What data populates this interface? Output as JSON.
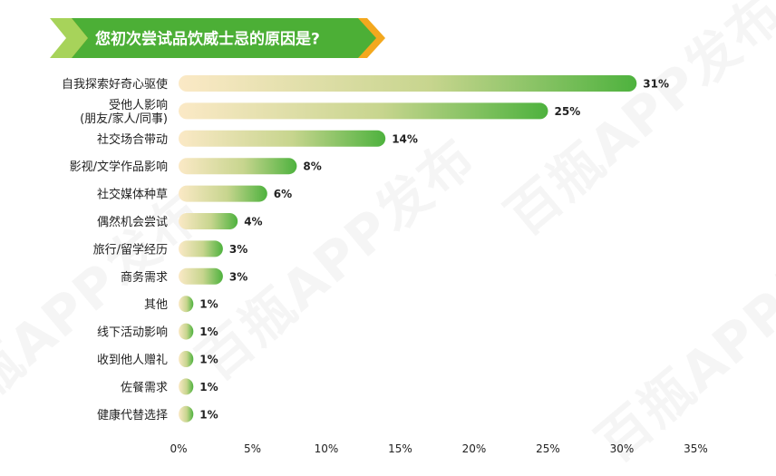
{
  "title": "您初次尝试品饮威士忌的原因是?",
  "watermark": "百瓶APP发布",
  "colors": {
    "banner_green": "#4CAF36",
    "banner_orange": "#F3A81E",
    "bar_start": "#FBE9C6",
    "bar_end": "#4EB23E",
    "text": "#222222"
  },
  "chart_data": {
    "type": "bar",
    "orientation": "horizontal",
    "categories": [
      "自我探索好奇心驱使",
      "受他人影响\n(朋友/家人/同事)",
      "社交场合带动",
      "影视/文学作品影响",
      "社交媒体种草",
      "偶然机会尝试",
      "旅行/留学经历",
      "商务需求",
      "其他",
      "线下活动影响",
      "收到他人赠礼",
      "佐餐需求",
      "健康代替选择"
    ],
    "values": [
      31,
      25,
      14,
      8,
      6,
      4,
      3,
      3,
      1,
      1,
      1,
      1,
      1
    ],
    "value_labels": [
      "31%",
      "25%",
      "14%",
      "8%",
      "6%",
      "4%",
      "3%",
      "3%",
      "1%",
      "1%",
      "1%",
      "1%",
      "1%"
    ],
    "xlim": [
      0,
      35
    ],
    "xticks": [
      "0%",
      "5%",
      "10%",
      "15%",
      "20%",
      "25%",
      "30%",
      "35%"
    ],
    "xlabel": "",
    "ylabel": "",
    "grid": false,
    "legend": "none"
  }
}
